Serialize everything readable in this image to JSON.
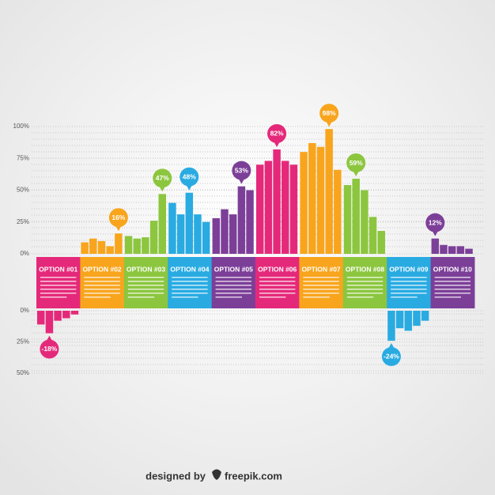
{
  "chart_data": {
    "type": "bar",
    "ylim": [
      0,
      100
    ],
    "yticks": [
      {
        "value": 100,
        "label": "100%"
      },
      {
        "value": 75,
        "label": "75%"
      },
      {
        "value": 50,
        "label": "50%"
      },
      {
        "value": 25,
        "label": "25%"
      },
      {
        "value": 0,
        "label": "0%"
      }
    ],
    "y2lim": [
      -50,
      0
    ],
    "y2ticks": [
      {
        "value": 0,
        "label": "0%"
      },
      {
        "value": -25,
        "label": "25%"
      },
      {
        "value": -50,
        "label": "50%"
      }
    ],
    "series": [
      {
        "name": "OPTION #01",
        "color": "#e5297a",
        "axis": "y2",
        "values": [
          -11,
          -18,
          -8,
          -6,
          -3
        ],
        "value_labels": [
          null,
          "-18%",
          null,
          null,
          null
        ]
      },
      {
        "name": "OPTION #02",
        "color": "#f8a51d",
        "values": [
          9,
          12,
          10,
          6,
          16
        ],
        "value_labels": [
          null,
          null,
          null,
          null,
          "16%"
        ]
      },
      {
        "name": "OPTION #03",
        "color": "#8cc63f",
        "values": [
          14,
          12,
          13,
          26,
          47
        ],
        "value_labels": [
          null,
          null,
          null,
          null,
          "47%"
        ]
      },
      {
        "name": "OPTION #04",
        "color": "#29abe2",
        "values": [
          40,
          31,
          48,
          31,
          25
        ],
        "value_labels": [
          null,
          null,
          "48%",
          null,
          null
        ]
      },
      {
        "name": "OPTION #05",
        "color": "#7c3f98",
        "values": [
          28,
          35,
          31,
          53,
          50
        ],
        "value_labels": [
          null,
          null,
          null,
          "53%",
          null
        ]
      },
      {
        "name": "OPTION #06",
        "color": "#e5297a",
        "values": [
          70,
          73,
          82,
          73,
          70
        ],
        "value_labels": [
          null,
          null,
          "82%",
          null,
          null
        ]
      },
      {
        "name": "OPTION #07",
        "color": "#f8a51d",
        "values": [
          80,
          87,
          84,
          98,
          66
        ],
        "value_labels": [
          null,
          null,
          null,
          "98%",
          null
        ]
      },
      {
        "name": "OPTION #08",
        "color": "#8cc63f",
        "values": [
          54,
          59,
          50,
          29,
          18
        ],
        "value_labels": [
          null,
          "59%",
          null,
          null,
          null
        ]
      },
      {
        "name": "OPTION #09",
        "color": "#29abe2",
        "axis": "y2",
        "values": [
          -24,
          -14,
          -16,
          -12,
          -8
        ],
        "value_labels": [
          "-24%",
          null,
          null,
          null,
          null
        ]
      },
      {
        "name": "OPTION #10",
        "color": "#7c3f98",
        "values": [
          12,
          7,
          6,
          6,
          4
        ],
        "value_labels": [
          "12%",
          null,
          null,
          null,
          null
        ]
      }
    ]
  },
  "footer": {
    "prefix": "designed by",
    "brand": "freepik.com"
  }
}
